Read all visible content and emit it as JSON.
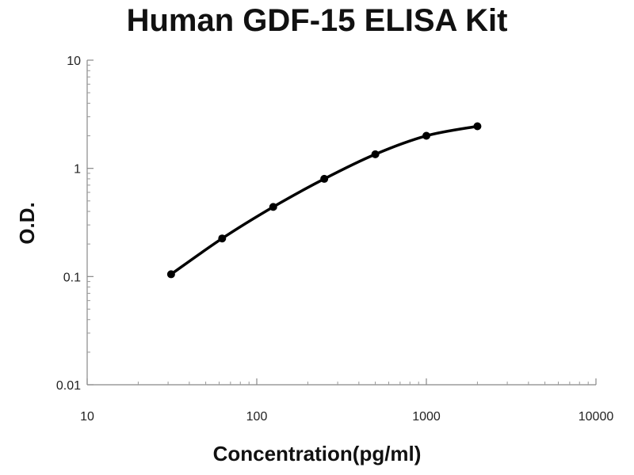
{
  "chart_data": {
    "type": "line",
    "title": "Human GDF-15 ELISA Kit",
    "xlabel": "Concentration(pg/ml)",
    "ylabel": "O.D.",
    "x_scale": "log",
    "y_scale": "log",
    "xlim": [
      10,
      10000
    ],
    "ylim": [
      0.01,
      10
    ],
    "x_ticks": [
      "10",
      "100",
      "1000",
      "10000"
    ],
    "y_ticks": [
      "0.01",
      "0.1",
      "1",
      "10"
    ],
    "grid": false,
    "legend": "none",
    "series": [
      {
        "x": [
          31.25,
          62.5,
          125,
          250,
          500,
          1000,
          2000
        ],
        "y": [
          0.105,
          0.225,
          0.44,
          0.8,
          1.35,
          2.0,
          2.45
        ]
      }
    ],
    "line_color": "#000000"
  }
}
